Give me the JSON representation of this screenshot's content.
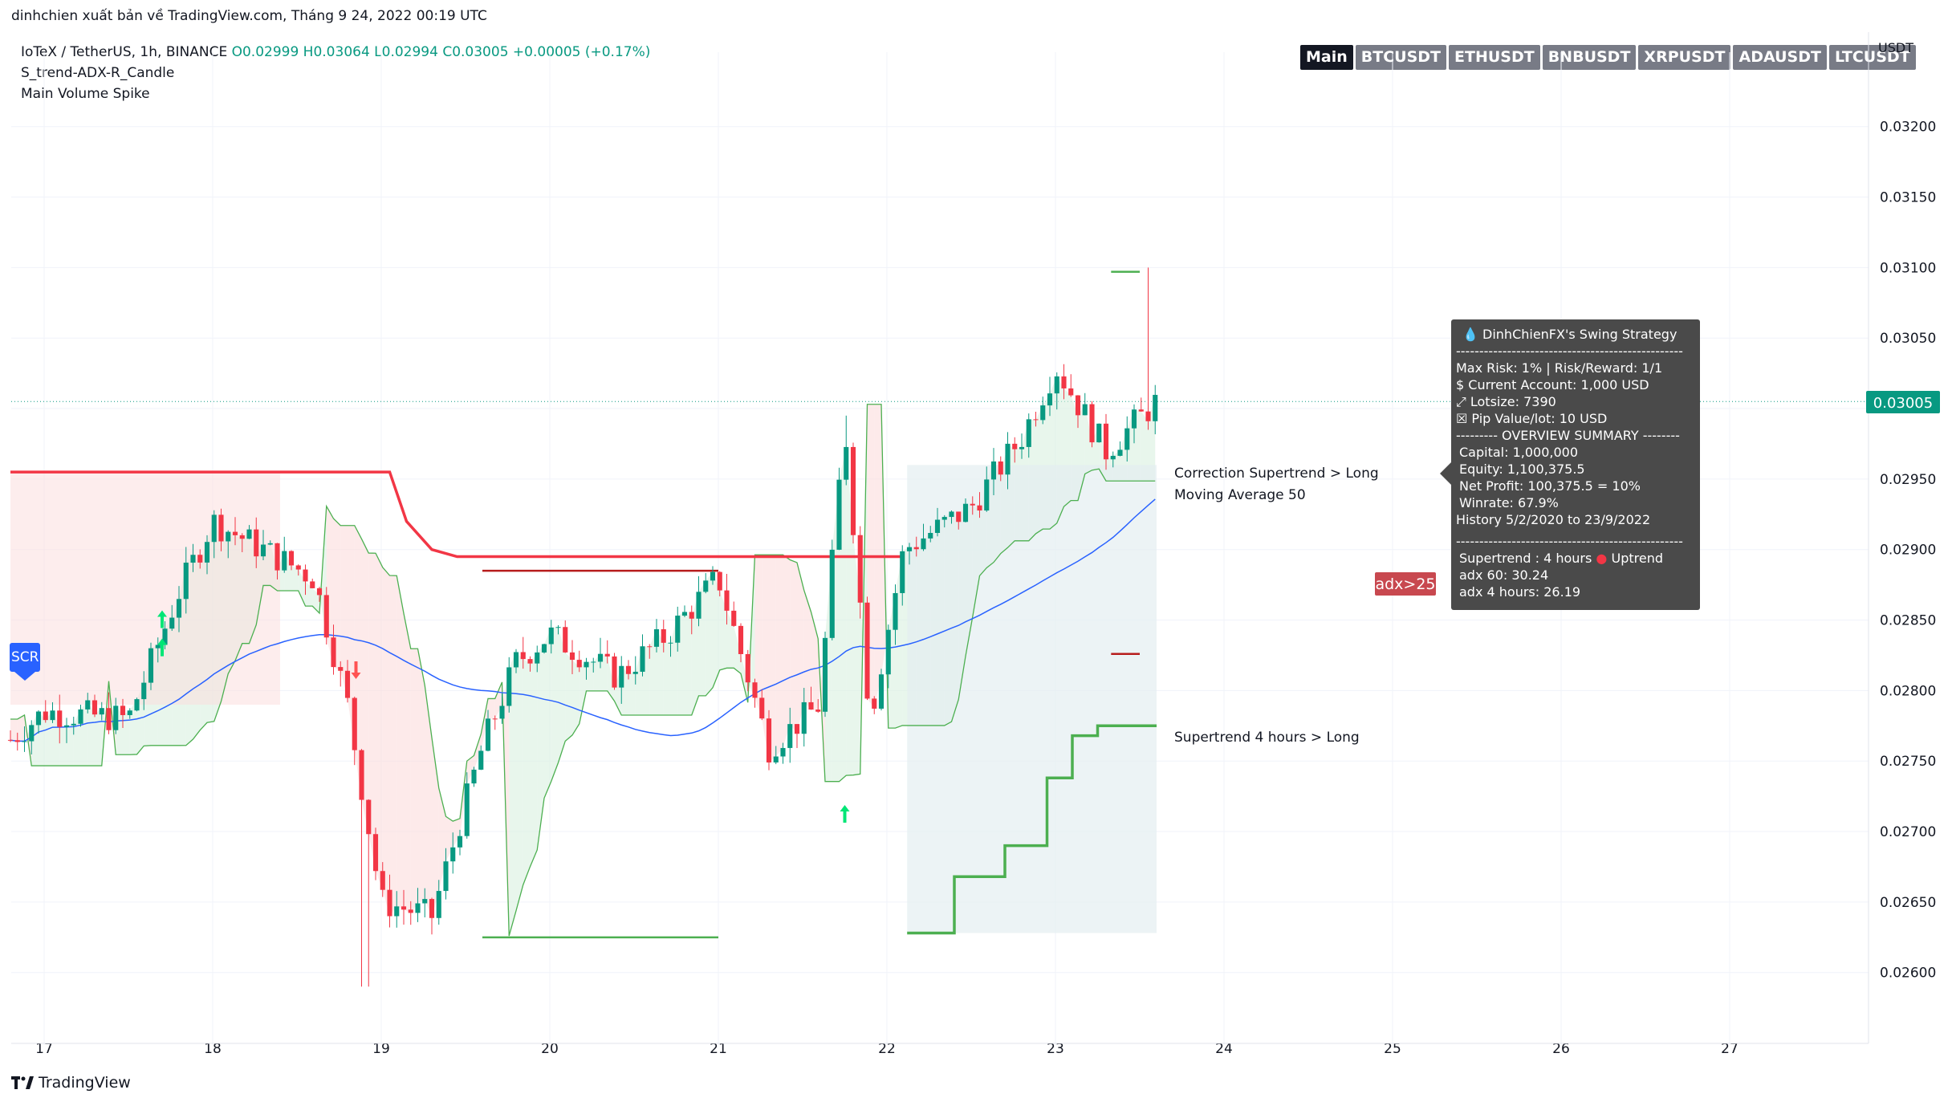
{
  "publisher_text": "dinhchien xuất bản về TradingView.com, Tháng 9 24, 2022 00:19 UTC",
  "legend": {
    "symbol": "IoTeX / TetherUS, 1h, BINANCE",
    "ohlc": "O0.02999  H0.03064  L0.02994  C0.03005  +0.00005 (+0.17%)",
    "indicator1": "S_trend-ADX-R_Candle",
    "indicator2": "Main Volume Spike"
  },
  "tabs": [
    "Main",
    "BTCUSDT",
    "ETHUSDT",
    "BNBUSDT",
    "XRPUSDT",
    "ADAUSDT",
    "LTCUSDT"
  ],
  "currency": "USDT",
  "footer_logo": "TradingView",
  "labels": {
    "correction": "Correction Supertrend  > Long",
    "ma": "Moving Average 50",
    "st4h": "Supertrend 4 hours > Long",
    "adx": "adx>25",
    "scr": "SCR",
    "last_price": "0.03005"
  },
  "info_box": {
    "title": "DinhChienFX's Swing Strategy",
    "separator": "-------------------------------------------------",
    "risk": "Max Risk: 1% | Risk/Reward: 1/1",
    "account": "$ Current Account: 1,000 USD",
    "lotsize": "⤢ Lotsize: 7390",
    "pip": "☒ Pip Value/lot: 10 USD",
    "overview": "--------- OVERVIEW SUMMARY --------",
    "capital": "Capital: 1,000,000",
    "equity": "Equity: 1,100,375.5",
    "net_profit": "Net Profit: 100,375.5 = 10%",
    "winrate": "Winrate: 67.9%",
    "history": "History 5/2/2020 to 23/9/2022",
    "supertrend": "Supertrend : 4 hours",
    "uptrend": "Uptrend",
    "adx60": "adx 60: 30.24",
    "adx4h": "adx 4 hours: 26.19"
  },
  "colors": {
    "up": "#089981",
    "down": "#f23645",
    "ma": "#2962ff",
    "supertrend_long": "#4caf50",
    "supertrend_short": "#f23645",
    "fill_red": "#fbdcdc",
    "fill_green": "#d9f0df"
  },
  "chart_data": {
    "type": "candlestick",
    "x_axis_labels": [
      "17",
      "18",
      "19",
      "20",
      "21",
      "22",
      "23",
      "24",
      "25",
      "26",
      "27"
    ],
    "y_axis_ticks": [
      0.026,
      0.0265,
      0.027,
      0.0275,
      0.028,
      0.0285,
      0.029,
      0.0295,
      0.03,
      0.0305,
      0.031,
      0.0315,
      0.032
    ],
    "ylim": [
      0.0256,
      0.0323
    ],
    "last_price": 0.03005,
    "ohlc_keypoints": [
      {
        "day": 16.8,
        "close": 0.02765
      },
      {
        "day": 17.0,
        "close": 0.02785
      },
      {
        "day": 17.5,
        "close": 0.0278
      },
      {
        "day": 17.8,
        "close": 0.0287
      },
      {
        "day": 18.0,
        "close": 0.0292
      },
      {
        "day": 18.3,
        "close": 0.029
      },
      {
        "day": 18.6,
        "close": 0.0288
      },
      {
        "day": 18.8,
        "close": 0.0279
      },
      {
        "day": 19.0,
        "close": 0.0265
      },
      {
        "day": 19.3,
        "close": 0.0264
      },
      {
        "day": 19.6,
        "close": 0.0276
      },
      {
        "day": 19.8,
        "close": 0.0282
      },
      {
        "day": 20.0,
        "close": 0.0284
      },
      {
        "day": 20.4,
        "close": 0.0281
      },
      {
        "day": 20.7,
        "close": 0.0284
      },
      {
        "day": 21.0,
        "close": 0.0288
      },
      {
        "day": 21.3,
        "close": 0.0276
      },
      {
        "day": 21.6,
        "close": 0.0279
      },
      {
        "day": 21.75,
        "close": 0.0299
      },
      {
        "day": 21.9,
        "close": 0.0278
      },
      {
        "day": 22.1,
        "close": 0.029
      },
      {
        "day": 22.5,
        "close": 0.0293
      },
      {
        "day": 22.8,
        "close": 0.0298
      },
      {
        "day": 23.0,
        "close": 0.0303
      },
      {
        "day": 23.3,
        "close": 0.0297
      },
      {
        "day": 23.6,
        "close": 0.03005
      }
    ],
    "series": [
      {
        "name": "Correction Supertrend  > Long",
        "type": "line"
      },
      {
        "name": "Moving Average 50",
        "type": "line"
      },
      {
        "name": "Supertrend 4 hours > Long",
        "type": "step-line"
      }
    ]
  }
}
